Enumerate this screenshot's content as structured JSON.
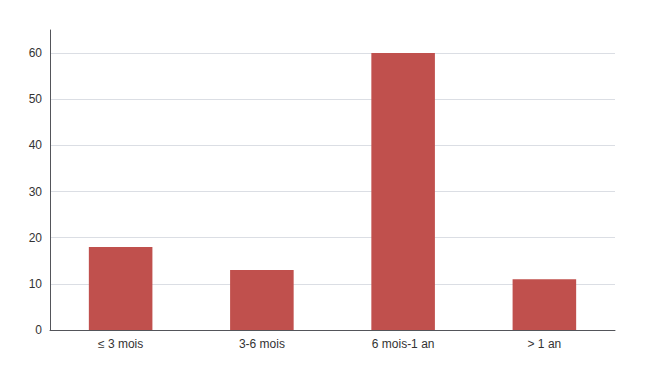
{
  "chart_data": {
    "type": "bar",
    "categories": [
      "≤ 3 mois",
      "3-6 mois",
      "6 mois-1 an",
      "> 1 an"
    ],
    "values": [
      18,
      13,
      60,
      11
    ],
    "color": "#c0504d",
    "ylim": [
      0,
      65
    ],
    "yticks": [
      0,
      10,
      20,
      30,
      40,
      50,
      60
    ],
    "grid": true
  }
}
